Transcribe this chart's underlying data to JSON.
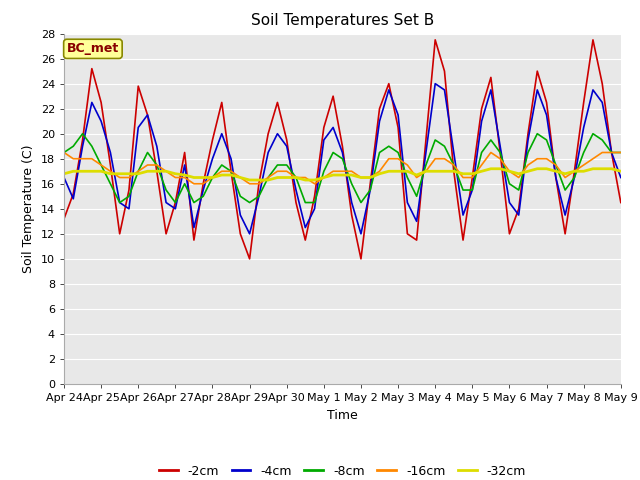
{
  "title": "Soil Temperatures Set B",
  "xlabel": "Time",
  "ylabel": "Soil Temperature (C)",
  "annotation": "BC_met",
  "ylim": [
    0,
    28
  ],
  "yticks": [
    0,
    2,
    4,
    6,
    8,
    10,
    12,
    14,
    16,
    18,
    20,
    22,
    24,
    26,
    28
  ],
  "xtick_labels": [
    "Apr 24",
    "Apr 25",
    "Apr 26",
    "Apr 27",
    "Apr 28",
    "Apr 29",
    "Apr 30",
    "May 1",
    "May 2",
    "May 3",
    "May 4",
    "May 5",
    "May 6",
    "May 7",
    "May 8",
    "May 9"
  ],
  "series": {
    "-2cm": {
      "color": "#cc0000",
      "linewidth": 1.2,
      "values": [
        13.2,
        15.2,
        19.5,
        25.2,
        22.5,
        17.5,
        12.0,
        15.5,
        23.8,
        21.5,
        17.0,
        12.0,
        14.5,
        18.5,
        11.5,
        16.0,
        19.5,
        22.5,
        17.0,
        12.0,
        10.0,
        16.0,
        20.0,
        22.5,
        19.5,
        14.5,
        11.5,
        15.0,
        20.5,
        23.0,
        19.0,
        13.5,
        10.0,
        16.0,
        22.0,
        24.0,
        20.5,
        12.0,
        11.5,
        19.5,
        27.5,
        25.0,
        17.0,
        11.5,
        16.5,
        22.0,
        24.5,
        18.5,
        12.0,
        14.0,
        20.0,
        25.0,
        22.5,
        16.5,
        12.0,
        17.0,
        22.5,
        27.5,
        24.0,
        18.5,
        14.5
      ]
    },
    "-4cm": {
      "color": "#0000cc",
      "linewidth": 1.2,
      "values": [
        16.5,
        14.8,
        19.0,
        22.5,
        21.0,
        18.5,
        14.5,
        14.0,
        20.5,
        21.5,
        19.0,
        14.5,
        14.0,
        17.5,
        12.5,
        15.5,
        18.0,
        20.0,
        18.0,
        13.5,
        12.0,
        15.0,
        18.5,
        20.0,
        19.0,
        15.5,
        12.5,
        14.0,
        19.5,
        20.5,
        18.5,
        14.5,
        12.0,
        15.5,
        21.0,
        23.5,
        21.5,
        14.5,
        13.0,
        18.5,
        24.0,
        23.5,
        18.5,
        13.5,
        15.5,
        21.0,
        23.5,
        19.0,
        14.5,
        13.5,
        19.5,
        23.5,
        21.5,
        16.5,
        13.5,
        16.5,
        20.5,
        23.5,
        22.5,
        18.5,
        16.5
      ]
    },
    "-8cm": {
      "color": "#00aa00",
      "linewidth": 1.2,
      "values": [
        18.5,
        19.0,
        20.0,
        19.0,
        17.5,
        16.0,
        14.5,
        15.0,
        17.0,
        18.5,
        17.5,
        15.5,
        14.5,
        16.0,
        14.5,
        15.0,
        16.5,
        17.5,
        17.0,
        15.0,
        14.5,
        15.0,
        16.5,
        17.5,
        17.5,
        16.5,
        14.5,
        14.5,
        17.0,
        18.5,
        18.0,
        16.0,
        14.5,
        15.5,
        18.5,
        19.0,
        18.5,
        16.5,
        15.0,
        17.5,
        19.5,
        19.0,
        17.5,
        15.5,
        15.5,
        18.5,
        19.5,
        18.5,
        16.0,
        15.5,
        18.5,
        20.0,
        19.5,
        17.5,
        15.5,
        16.5,
        18.5,
        20.0,
        19.5,
        18.5,
        18.5
      ]
    },
    "-16cm": {
      "color": "#ff8800",
      "linewidth": 1.2,
      "values": [
        18.5,
        18.0,
        18.0,
        18.0,
        17.5,
        17.0,
        16.5,
        16.5,
        17.0,
        17.5,
        17.5,
        17.0,
        16.5,
        16.5,
        16.0,
        16.0,
        16.5,
        17.0,
        17.0,
        16.5,
        16.0,
        16.0,
        16.5,
        17.0,
        17.0,
        16.5,
        16.5,
        16.0,
        16.5,
        17.0,
        17.0,
        17.0,
        16.5,
        16.5,
        17.0,
        18.0,
        18.0,
        17.5,
        16.5,
        17.0,
        18.0,
        18.0,
        17.5,
        16.5,
        16.5,
        17.5,
        18.5,
        18.0,
        17.0,
        16.5,
        17.5,
        18.0,
        18.0,
        17.5,
        16.5,
        17.0,
        17.5,
        18.0,
        18.5,
        18.5,
        18.5
      ]
    },
    "-32cm": {
      "color": "#dddd00",
      "linewidth": 2.0,
      "values": [
        16.8,
        17.0,
        17.0,
        17.0,
        17.0,
        16.8,
        16.8,
        16.8,
        16.8,
        17.0,
        17.0,
        17.0,
        16.8,
        16.7,
        16.5,
        16.5,
        16.5,
        16.7,
        16.7,
        16.5,
        16.3,
        16.3,
        16.3,
        16.5,
        16.5,
        16.5,
        16.3,
        16.3,
        16.5,
        16.7,
        16.7,
        16.7,
        16.5,
        16.5,
        16.8,
        17.0,
        17.0,
        17.0,
        16.7,
        17.0,
        17.0,
        17.0,
        17.0,
        16.8,
        16.8,
        17.0,
        17.2,
        17.2,
        17.0,
        16.8,
        17.0,
        17.2,
        17.2,
        17.0,
        16.8,
        17.0,
        17.0,
        17.2,
        17.2,
        17.2,
        17.0
      ]
    }
  },
  "legend_labels": [
    "-2cm",
    "-4cm",
    "-8cm",
    "-16cm",
    "-32cm"
  ],
  "legend_colors": [
    "#cc0000",
    "#0000cc",
    "#00aa00",
    "#ff8800",
    "#dddd00"
  ],
  "fig_bg_color": "#ffffff",
  "plot_bg_color": "#e8e8e8",
  "annotation_bg": "#ffff99",
  "annotation_border": "#888800",
  "title_fontsize": 11,
  "axis_label_fontsize": 9,
  "tick_fontsize": 8
}
